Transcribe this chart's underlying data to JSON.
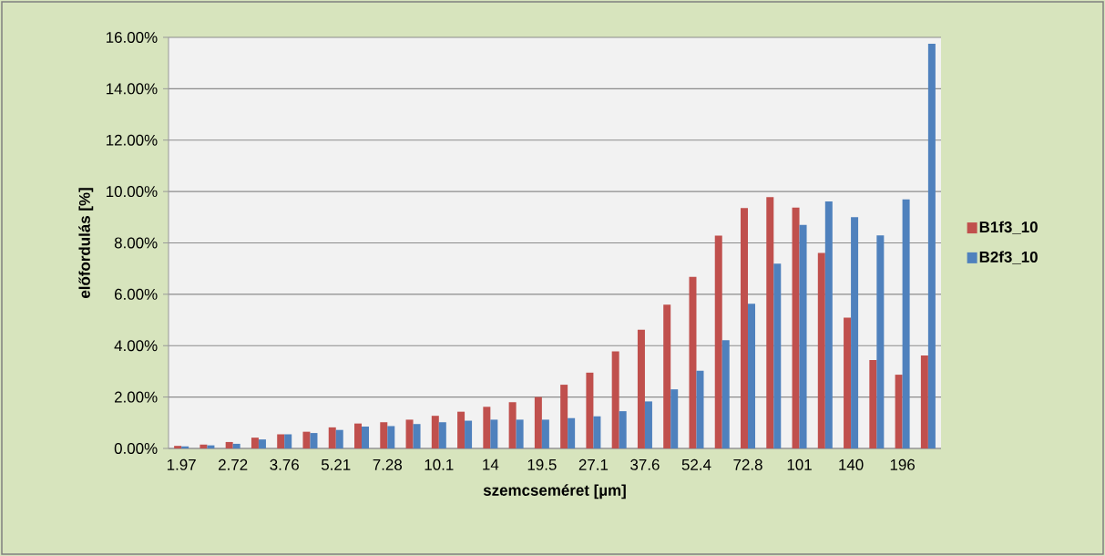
{
  "chart_data": {
    "type": "bar",
    "xlabel": "szemcseméret [µm]",
    "ylabel": "előfordulás [%]",
    "categories": [
      "1.97",
      null,
      "2.72",
      null,
      "3.76",
      null,
      "5.21",
      null,
      "7.28",
      null,
      "10.1",
      null,
      "14",
      null,
      "19.5",
      null,
      "27.1",
      null,
      "37.6",
      null,
      "52.4",
      null,
      "72.8",
      null,
      "101",
      null,
      "140",
      null,
      "196",
      null
    ],
    "series": [
      {
        "name": "B1f3_10",
        "color": "#c0504d",
        "values": [
          0.1,
          0.15,
          0.25,
          0.42,
          0.55,
          0.65,
          0.82,
          0.97,
          1.02,
          1.12,
          1.27,
          1.43,
          1.62,
          1.8,
          2.0,
          2.48,
          2.95,
          3.78,
          4.62,
          5.6,
          6.68,
          8.28,
          9.36,
          9.78,
          9.37,
          7.61,
          5.09,
          3.44,
          2.87,
          3.62
        ]
      },
      {
        "name": "B2f3_10",
        "color": "#4f81bd",
        "values": [
          0.08,
          0.12,
          0.18,
          0.35,
          0.55,
          0.6,
          0.72,
          0.85,
          0.87,
          0.95,
          1.02,
          1.08,
          1.12,
          1.12,
          1.12,
          1.18,
          1.25,
          1.45,
          1.83,
          2.3,
          3.02,
          4.21,
          5.63,
          7.19,
          8.7,
          9.61,
          9.0,
          8.29,
          9.69,
          15.75
        ]
      }
    ],
    "ylim": [
      0,
      16
    ],
    "yticks": [
      {
        "value": 0,
        "label": "0.00%"
      },
      {
        "value": 2,
        "label": "2.00%"
      },
      {
        "value": 4,
        "label": "4.00%"
      },
      {
        "value": 6,
        "label": "6.00%"
      },
      {
        "value": 8,
        "label": "8.00%"
      },
      {
        "value": 10,
        "label": "10.00%"
      },
      {
        "value": 12,
        "label": "12.00%"
      },
      {
        "value": 14,
        "label": "14.00%"
      },
      {
        "value": 16,
        "label": "16.00%"
      }
    ],
    "grid": "y",
    "legend": "right"
  }
}
